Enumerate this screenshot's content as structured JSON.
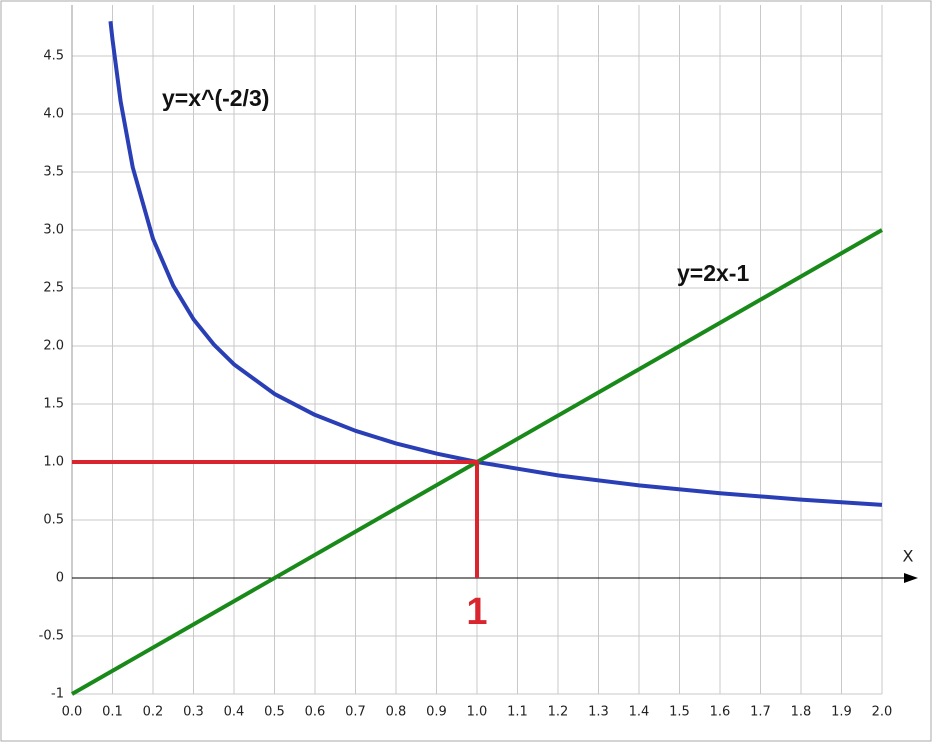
{
  "chart_data": {
    "type": "line",
    "xlabel": "X",
    "xlim": [
      0,
      2
    ],
    "ylim": [
      -1,
      4.94
    ],
    "xticks": [
      {
        "value": 0,
        "label": "0.0"
      },
      0.1,
      0.2,
      0.3,
      0.4,
      0.5,
      0.6,
      0.7,
      0.8,
      0.9,
      {
        "value": 1,
        "label": "1.0"
      },
      1.1,
      1.2,
      1.3,
      1.4,
      1.5,
      1.6,
      1.7,
      1.8,
      1.9,
      {
        "value": 2,
        "label": "2.0"
      }
    ],
    "yticks": [
      -1.0,
      -0.5,
      0,
      0.5,
      {
        "value": 1,
        "label": "1.0"
      },
      1.5,
      {
        "value": 2,
        "label": "2.0"
      },
      2.5,
      {
        "value": 3,
        "label": "3.0"
      },
      3.5,
      {
        "value": 4,
        "label": "4.0"
      },
      4.5
    ],
    "grid": true,
    "series": [
      {
        "name": "y=x^(-2/3)",
        "color": "#2a3fb5",
        "x": [
          0.095,
          0.1,
          0.12,
          0.15,
          0.2,
          0.25,
          0.3,
          0.35,
          0.4,
          0.5,
          0.6,
          0.7,
          0.8,
          0.9,
          1.0,
          1.2,
          1.4,
          1.6,
          1.8,
          2.0
        ],
        "values": [
          4.8,
          4.642,
          4.11,
          3.54,
          2.924,
          2.52,
          2.231,
          2.014,
          1.842,
          1.587,
          1.406,
          1.269,
          1.16,
          1.073,
          1.0,
          0.885,
          0.799,
          0.731,
          0.676,
          0.63
        ]
      },
      {
        "name": "y=2x-1",
        "color": "#198a19",
        "x": [
          0,
          2
        ],
        "values": [
          -1,
          3
        ]
      },
      {
        "color": "#d9262e",
        "x": [
          0,
          1,
          1
        ],
        "values": [
          1,
          1,
          0
        ]
      }
    ],
    "annotations": [
      {
        "text": "1",
        "color": "#d9262e"
      }
    ]
  }
}
